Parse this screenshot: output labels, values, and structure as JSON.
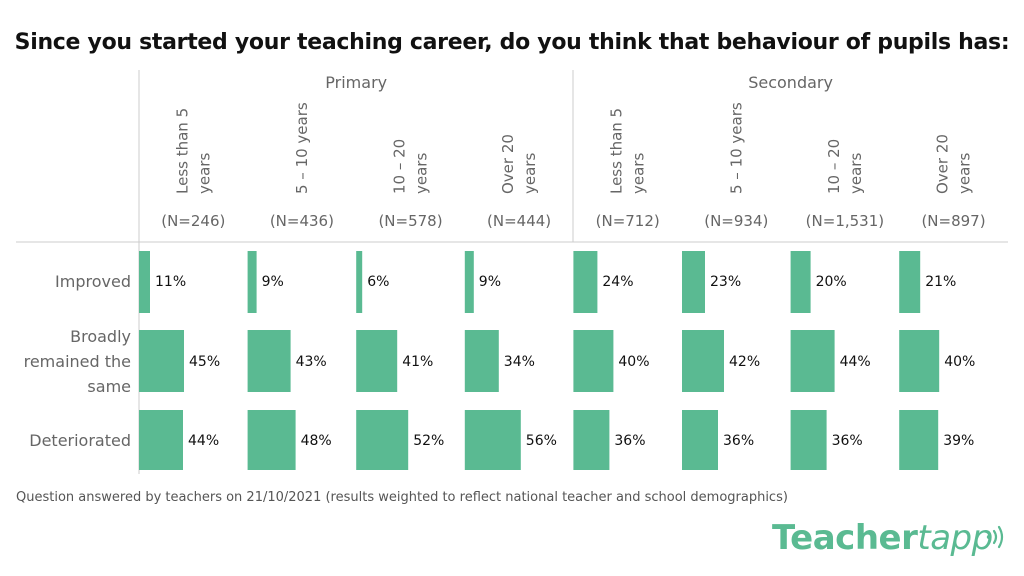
{
  "title": "Since you started your teaching career, do you think that behaviour of pupils has:",
  "footnote": "Question answered by  teachers on 21/10/2021 (results weighted to reflect national teacher and school demographics)",
  "brand": {
    "main": "Teacher",
    "accent": "tapp"
  },
  "colors": {
    "bar": "#5aba92",
    "divider": "#cccccc"
  },
  "chart_data": {
    "type": "bar",
    "orientation": "horizontal",
    "groups": [
      {
        "name": "Primary",
        "columns": [
          0,
          1,
          2,
          3
        ]
      },
      {
        "name": "Secondary",
        "columns": [
          4,
          5,
          6,
          7
        ]
      }
    ],
    "columns": [
      {
        "label": [
          "Less than 5",
          "years"
        ],
        "n": "(N=246)"
      },
      {
        "label": [
          "5 – 10 years"
        ],
        "n": "(N=436)"
      },
      {
        "label": [
          "10 – 20",
          "years"
        ],
        "n": "(N=578)"
      },
      {
        "label": [
          "Over 20",
          "years"
        ],
        "n": "(N=444)"
      },
      {
        "label": [
          "Less than 5",
          "years"
        ],
        "n": "(N=712)"
      },
      {
        "label": [
          "5 – 10 years"
        ],
        "n": "(N=934)"
      },
      {
        "label": [
          "10 – 20",
          "years"
        ],
        "n": "(N=1,531)"
      },
      {
        "label": [
          "Over 20",
          "years"
        ],
        "n": "(N=897)"
      }
    ],
    "rows": [
      {
        "label": [
          "Improved"
        ],
        "values": [
          11,
          9,
          6,
          9,
          24,
          23,
          20,
          21
        ]
      },
      {
        "label": [
          "Broadly",
          "remained the",
          "same"
        ],
        "values": [
          45,
          43,
          41,
          34,
          40,
          42,
          44,
          40
        ]
      },
      {
        "label": [
          "Deteriorated"
        ],
        "values": [
          44,
          48,
          52,
          56,
          36,
          36,
          36,
          39
        ]
      }
    ],
    "value_suffix": "%",
    "xlim": [
      0,
      100
    ]
  }
}
